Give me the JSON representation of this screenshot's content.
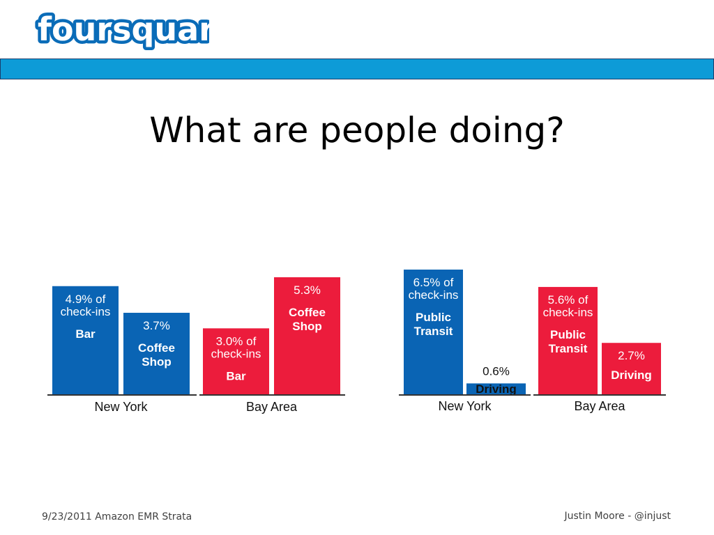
{
  "logo": {
    "text_a": "four",
    "text_b": "square"
  },
  "header": {
    "band_color": "#0d9bd7"
  },
  "slide": {
    "title": "What are people doing?"
  },
  "footer": {
    "left": "9/23/2011 Amazon EMR Strata",
    "right": "Justin Moore - @injust"
  },
  "colors": {
    "new_york": "#0a64b4",
    "bay_area": "#ec1c3c",
    "logo_blue": "#0a6cb8"
  },
  "chart_data": [
    {
      "type": "bar",
      "groups": [
        {
          "name": "New York",
          "color": "#0a64b4",
          "bars": [
            {
              "value": 4.9,
              "label_lines": [
                "4.9% of",
                "check-ins"
              ],
              "category": [
                "Bar"
              ],
              "position": "inside"
            },
            {
              "value": 3.7,
              "label_lines": [
                "3.7%"
              ],
              "category": [
                "Coffee",
                "Shop"
              ],
              "position": "inside"
            }
          ]
        },
        {
          "name": "Bay Area",
          "color": "#ec1c3c",
          "bars": [
            {
              "value": 3.0,
              "label_lines": [
                "3.0% of",
                "check-ins"
              ],
              "category": [
                "Bar"
              ],
              "position": "inside"
            },
            {
              "value": 5.3,
              "label_lines": [
                "5.3%"
              ],
              "category": [
                "Coffee",
                "Shop"
              ],
              "position": "inside"
            }
          ]
        }
      ]
    },
    {
      "type": "bar",
      "groups": [
        {
          "name": "New York",
          "color": "#0a64b4",
          "bars": [
            {
              "value": 6.5,
              "label_lines": [
                "6.5% of",
                "check-ins"
              ],
              "category": [
                "Public",
                "Transit"
              ],
              "position": "inside"
            },
            {
              "value": 0.6,
              "label_lines": [
                "0.6%"
              ],
              "category": [
                "Driving"
              ],
              "position": "above"
            }
          ]
        },
        {
          "name": "Bay Area",
          "color": "#ec1c3c",
          "bars": [
            {
              "value": 5.6,
              "label_lines": [
                "5.6% of",
                "check-ins"
              ],
              "category": [
                "Public",
                "Transit"
              ],
              "position": "inside"
            },
            {
              "value": 2.7,
              "label_lines": [
                "2.7%"
              ],
              "category": [
                "Driving"
              ],
              "position": "inside"
            }
          ]
        }
      ]
    }
  ]
}
